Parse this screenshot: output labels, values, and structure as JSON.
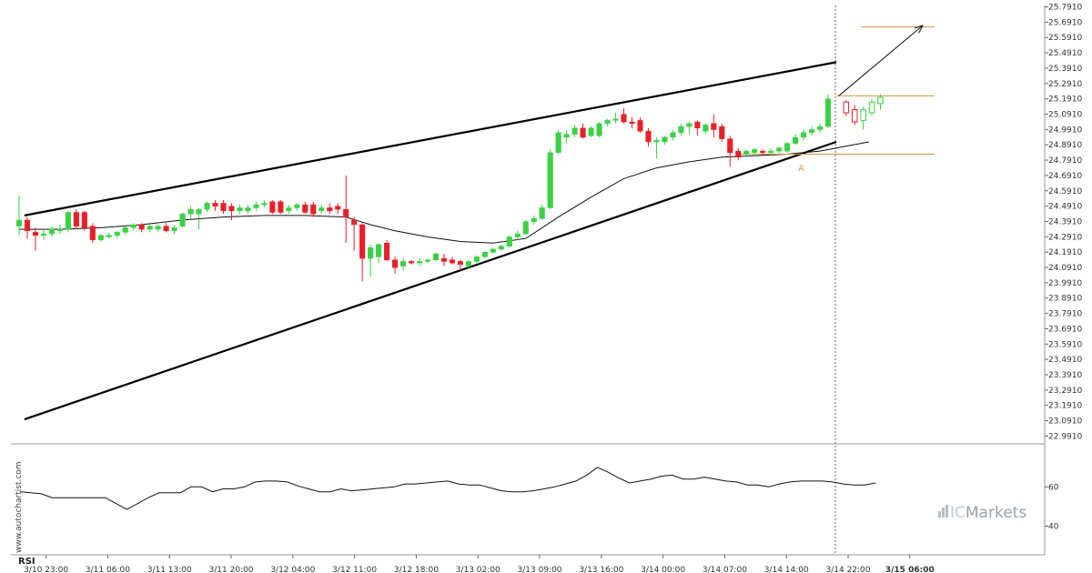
{
  "chart_data": {
    "type": "candlestick",
    "title": "",
    "price_axis": {
      "ticks": [
        "25.7910",
        "25.6910",
        "25.5910",
        "25.4910",
        "25.3910",
        "25.2910",
        "25.1910",
        "25.0910",
        "24.9910",
        "24.8910",
        "24.7910",
        "24.6910",
        "24.5910",
        "24.4910",
        "24.3910",
        "24.2910",
        "24.1910",
        "24.0910",
        "23.9910",
        "23.8910",
        "23.7910",
        "23.6910",
        "23.5910",
        "23.4910",
        "23.3910",
        "23.2910",
        "23.1910",
        "23.0910",
        "22.9910"
      ],
      "range": [
        22.94,
        25.8
      ]
    },
    "time_axis": {
      "labels": [
        "3/10 23:00",
        "3/11 06:00",
        "3/11 13:00",
        "3/11 20:00",
        "3/12 04:00",
        "3/12 11:00",
        "3/12 18:00",
        "3/13 02:00",
        "3/13 09:00",
        "3/13 16:00",
        "3/14 00:00",
        "3/14 07:00",
        "3/14 14:00",
        "3/14 22:00",
        "3/15 06:00"
      ],
      "bold_label_index": 14
    },
    "candles": [
      {
        "o": 24.36,
        "h": 24.56,
        "l": 24.3,
        "c": 24.4
      },
      {
        "o": 24.4,
        "h": 24.42,
        "l": 24.28,
        "c": 24.33
      },
      {
        "o": 24.32,
        "h": 24.35,
        "l": 24.2,
        "c": 24.3
      },
      {
        "o": 24.3,
        "h": 24.34,
        "l": 24.27,
        "c": 24.31
      },
      {
        "o": 24.31,
        "h": 24.36,
        "l": 24.29,
        "c": 24.34
      },
      {
        "o": 24.33,
        "h": 24.37,
        "l": 24.31,
        "c": 24.34
      },
      {
        "o": 24.34,
        "h": 24.46,
        "l": 24.32,
        "c": 24.45
      },
      {
        "o": 24.45,
        "h": 24.47,
        "l": 24.34,
        "c": 24.36
      },
      {
        "o": 24.45,
        "h": 24.46,
        "l": 24.33,
        "c": 24.35
      },
      {
        "o": 24.36,
        "h": 24.38,
        "l": 24.25,
        "c": 24.27
      },
      {
        "o": 24.27,
        "h": 24.31,
        "l": 24.26,
        "c": 24.3
      },
      {
        "o": 24.29,
        "h": 24.32,
        "l": 24.28,
        "c": 24.3
      },
      {
        "o": 24.3,
        "h": 24.33,
        "l": 24.28,
        "c": 24.32
      },
      {
        "o": 24.32,
        "h": 24.36,
        "l": 24.3,
        "c": 24.35
      },
      {
        "o": 24.35,
        "h": 24.38,
        "l": 24.33,
        "c": 24.37
      },
      {
        "o": 24.37,
        "h": 24.38,
        "l": 24.32,
        "c": 24.34
      },
      {
        "o": 24.34,
        "h": 24.37,
        "l": 24.32,
        "c": 24.36
      },
      {
        "o": 24.34,
        "h": 24.37,
        "l": 24.32,
        "c": 24.36
      },
      {
        "o": 24.36,
        "h": 24.38,
        "l": 24.32,
        "c": 24.33
      },
      {
        "o": 24.33,
        "h": 24.37,
        "l": 24.31,
        "c": 24.35
      },
      {
        "o": 24.36,
        "h": 24.45,
        "l": 24.35,
        "c": 24.44
      },
      {
        "o": 24.44,
        "h": 24.49,
        "l": 24.41,
        "c": 24.47
      },
      {
        "o": 24.44,
        "h": 24.48,
        "l": 24.34,
        "c": 24.47
      },
      {
        "o": 24.47,
        "h": 24.52,
        "l": 24.45,
        "c": 24.51
      },
      {
        "o": 24.51,
        "h": 24.53,
        "l": 24.46,
        "c": 24.49
      },
      {
        "o": 24.51,
        "h": 24.53,
        "l": 24.44,
        "c": 24.46
      },
      {
        "o": 24.49,
        "h": 24.51,
        "l": 24.4,
        "c": 24.46
      },
      {
        "o": 24.46,
        "h": 24.5,
        "l": 24.44,
        "c": 24.48
      },
      {
        "o": 24.46,
        "h": 24.5,
        "l": 24.44,
        "c": 24.48
      },
      {
        "o": 24.48,
        "h": 24.52,
        "l": 24.46,
        "c": 24.5
      },
      {
        "o": 24.5,
        "h": 24.53,
        "l": 24.48,
        "c": 24.51
      },
      {
        "o": 24.52,
        "h": 24.53,
        "l": 24.44,
        "c": 24.45
      },
      {
        "o": 24.52,
        "h": 24.53,
        "l": 24.44,
        "c": 24.45
      },
      {
        "o": 24.46,
        "h": 24.5,
        "l": 24.44,
        "c": 24.48
      },
      {
        "o": 24.48,
        "h": 24.51,
        "l": 24.46,
        "c": 24.5
      },
      {
        "o": 24.5,
        "h": 24.52,
        "l": 24.44,
        "c": 24.45
      },
      {
        "o": 24.5,
        "h": 24.52,
        "l": 24.42,
        "c": 24.44
      },
      {
        "o": 24.46,
        "h": 24.5,
        "l": 24.44,
        "c": 24.48
      },
      {
        "o": 24.48,
        "h": 24.51,
        "l": 24.44,
        "c": 24.46
      },
      {
        "o": 24.49,
        "h": 24.51,
        "l": 24.44,
        "c": 24.47
      },
      {
        "o": 24.47,
        "h": 24.69,
        "l": 24.25,
        "c": 24.42
      },
      {
        "o": 24.4,
        "h": 24.42,
        "l": 24.2,
        "c": 24.37
      },
      {
        "o": 24.37,
        "h": 24.38,
        "l": 24.0,
        "c": 24.15
      },
      {
        "o": 24.15,
        "h": 24.24,
        "l": 24.03,
        "c": 24.22
      },
      {
        "o": 24.16,
        "h": 24.25,
        "l": 24.12,
        "c": 24.24
      },
      {
        "o": 24.25,
        "h": 24.27,
        "l": 24.13,
        "c": 24.14
      },
      {
        "o": 24.14,
        "h": 24.16,
        "l": 24.05,
        "c": 24.09
      },
      {
        "o": 24.1,
        "h": 24.15,
        "l": 24.07,
        "c": 24.13
      },
      {
        "o": 24.13,
        "h": 24.14,
        "l": 24.11,
        "c": 24.12
      },
      {
        "o": 24.12,
        "h": 24.15,
        "l": 24.1,
        "c": 24.13
      },
      {
        "o": 24.13,
        "h": 24.15,
        "l": 24.12,
        "c": 24.14
      },
      {
        "o": 24.14,
        "h": 24.19,
        "l": 24.13,
        "c": 24.18
      },
      {
        "o": 24.15,
        "h": 24.18,
        "l": 24.1,
        "c": 24.13
      },
      {
        "o": 24.14,
        "h": 24.16,
        "l": 24.11,
        "c": 24.12
      },
      {
        "o": 24.13,
        "h": 24.14,
        "l": 24.07,
        "c": 24.11
      },
      {
        "o": 24.1,
        "h": 24.14,
        "l": 24.08,
        "c": 24.13
      },
      {
        "o": 24.13,
        "h": 24.17,
        "l": 24.12,
        "c": 24.16
      },
      {
        "o": 24.16,
        "h": 24.2,
        "l": 24.15,
        "c": 24.19
      },
      {
        "o": 24.19,
        "h": 24.22,
        "l": 24.18,
        "c": 24.21
      },
      {
        "o": 24.21,
        "h": 24.24,
        "l": 24.2,
        "c": 24.23
      },
      {
        "o": 24.23,
        "h": 24.3,
        "l": 24.22,
        "c": 24.29
      },
      {
        "o": 24.29,
        "h": 24.33,
        "l": 24.27,
        "c": 24.31
      },
      {
        "o": 24.31,
        "h": 24.4,
        "l": 24.3,
        "c": 24.39
      },
      {
        "o": 24.39,
        "h": 24.43,
        "l": 24.37,
        "c": 24.41
      },
      {
        "o": 24.41,
        "h": 24.5,
        "l": 24.4,
        "c": 24.48
      },
      {
        "o": 24.48,
        "h": 24.86,
        "l": 24.47,
        "c": 24.84
      },
      {
        "o": 24.84,
        "h": 24.99,
        "l": 24.83,
        "c": 24.97
      },
      {
        "o": 24.94,
        "h": 24.99,
        "l": 24.9,
        "c": 24.96
      },
      {
        "o": 24.96,
        "h": 25.02,
        "l": 24.94,
        "c": 25.0
      },
      {
        "o": 25.0,
        "h": 25.03,
        "l": 24.93,
        "c": 24.94
      },
      {
        "o": 24.95,
        "h": 25.01,
        "l": 24.94,
        "c": 25.0
      },
      {
        "o": 24.95,
        "h": 25.04,
        "l": 24.94,
        "c": 25.03
      },
      {
        "o": 25.03,
        "h": 25.06,
        "l": 25.01,
        "c": 25.05
      },
      {
        "o": 25.05,
        "h": 25.1,
        "l": 25.03,
        "c": 25.06
      },
      {
        "o": 25.09,
        "h": 25.13,
        "l": 25.03,
        "c": 25.04
      },
      {
        "o": 25.04,
        "h": 25.07,
        "l": 25.0,
        "c": 25.03
      },
      {
        "o": 25.05,
        "h": 25.07,
        "l": 24.97,
        "c": 24.98
      },
      {
        "o": 24.98,
        "h": 25.0,
        "l": 24.88,
        "c": 24.91
      },
      {
        "o": 24.91,
        "h": 24.94,
        "l": 24.8,
        "c": 24.92
      },
      {
        "o": 24.91,
        "h": 24.95,
        "l": 24.89,
        "c": 24.94
      },
      {
        "o": 24.94,
        "h": 24.99,
        "l": 24.92,
        "c": 24.97
      },
      {
        "o": 24.97,
        "h": 25.03,
        "l": 24.95,
        "c": 25.01
      },
      {
        "o": 25.01,
        "h": 25.04,
        "l": 24.96,
        "c": 25.03
      },
      {
        "o": 25.04,
        "h": 25.05,
        "l": 24.95,
        "c": 25.0
      },
      {
        "o": 24.98,
        "h": 25.03,
        "l": 24.96,
        "c": 25.02
      },
      {
        "o": 25.03,
        "h": 25.09,
        "l": 24.94,
        "c": 24.99
      },
      {
        "o": 25.01,
        "h": 25.03,
        "l": 24.91,
        "c": 24.93
      },
      {
        "o": 24.93,
        "h": 24.95,
        "l": 24.75,
        "c": 24.84
      },
      {
        "o": 24.85,
        "h": 24.87,
        "l": 24.79,
        "c": 24.81
      },
      {
        "o": 24.83,
        "h": 24.86,
        "l": 24.82,
        "c": 24.85
      },
      {
        "o": 24.84,
        "h": 24.87,
        "l": 24.82,
        "c": 24.86
      },
      {
        "o": 24.85,
        "h": 24.86,
        "l": 24.82,
        "c": 24.84
      },
      {
        "o": 24.84,
        "h": 24.87,
        "l": 24.82,
        "c": 24.85
      },
      {
        "o": 24.85,
        "h": 24.88,
        "l": 24.83,
        "c": 24.87
      },
      {
        "o": 24.85,
        "h": 24.91,
        "l": 24.84,
        "c": 24.9
      },
      {
        "o": 24.9,
        "h": 24.96,
        "l": 24.89,
        "c": 24.94
      },
      {
        "o": 24.94,
        "h": 24.99,
        "l": 24.92,
        "c": 24.97
      },
      {
        "o": 24.97,
        "h": 25.01,
        "l": 24.95,
        "c": 24.99
      },
      {
        "o": 24.99,
        "h": 25.03,
        "l": 24.97,
        "c": 25.01
      },
      {
        "o": 25.01,
        "h": 25.22,
        "l": 25.0,
        "c": 25.19
      }
    ],
    "projection_candles": [
      {
        "o": 25.17,
        "h": 25.18,
        "l": 25.08,
        "c": 25.1
      },
      {
        "o": 25.12,
        "h": 25.15,
        "l": 25.02,
        "c": 25.04
      },
      {
        "o": 25.05,
        "h": 25.14,
        "l": 24.99,
        "c": 25.12
      },
      {
        "o": 25.1,
        "h": 25.19,
        "l": 25.08,
        "c": 25.17
      },
      {
        "o": 25.16,
        "h": 25.22,
        "l": 25.12,
        "c": 25.2
      }
    ],
    "moving_average": [
      [
        0,
        24.34
      ],
      [
        5,
        24.34
      ],
      [
        10,
        24.35
      ],
      [
        15,
        24.37
      ],
      [
        20,
        24.4
      ],
      [
        25,
        24.42
      ],
      [
        30,
        24.43
      ],
      [
        35,
        24.43
      ],
      [
        40,
        24.42
      ],
      [
        43,
        24.37
      ],
      [
        46,
        24.33
      ],
      [
        50,
        24.29
      ],
      [
        54,
        24.26
      ],
      [
        58,
        24.25
      ],
      [
        62,
        24.28
      ],
      [
        66,
        24.42
      ],
      [
        70,
        24.55
      ],
      [
        74,
        24.67
      ],
      [
        78,
        24.74
      ],
      [
        82,
        24.78
      ],
      [
        86,
        24.81
      ],
      [
        90,
        24.82
      ],
      [
        94,
        24.83
      ],
      [
        98,
        24.85
      ],
      [
        100,
        24.87
      ],
      [
        104,
        24.91
      ]
    ],
    "channel": {
      "upper": [
        [
          0.65,
          24.43
        ],
        [
          100,
          25.43
        ]
      ],
      "lower": [
        [
          0.65,
          23.1
        ],
        [
          100,
          24.91
        ]
      ]
    },
    "levels": [
      {
        "name": "resistance",
        "price": 25.21,
        "from_index": 100,
        "to_index": 112,
        "color": "#d9923a"
      },
      {
        "name": "target",
        "price": 25.66,
        "from_index": 103,
        "to_index": 112,
        "color": "#d9923a"
      },
      {
        "name": "breakout",
        "price": 24.83,
        "from_index": 88,
        "to_index": 112,
        "color": "#d9923a"
      }
    ],
    "forecast_arrow": {
      "from": [
        100.3,
        25.21
      ],
      "to": [
        110.6,
        25.67
      ],
      "color": "#111111"
    },
    "marker": {
      "text": "A",
      "index": 95.7,
      "price": 24.78,
      "color": "#d9923a"
    },
    "rsi": {
      "title": "RSI",
      "range": [
        30,
        75
      ],
      "ticks": [
        "60",
        "40"
      ],
      "values": [
        57.5,
        57,
        56.5,
        54.5,
        54.5,
        54.5,
        54.5,
        54.5,
        54.5,
        51.5,
        48.5,
        51.5,
        54.5,
        57,
        57,
        57,
        60,
        60,
        57.5,
        59,
        59,
        60,
        62.5,
        63,
        63,
        62.5,
        60.5,
        59,
        57.5,
        57.5,
        59,
        58,
        58.5,
        59,
        59.5,
        60,
        61.5,
        61.5,
        62,
        62.5,
        63,
        61.5,
        61,
        61,
        59.5,
        58,
        57.5,
        57.5,
        58,
        59,
        60,
        61.5,
        63,
        66,
        70,
        67.5,
        64.5,
        62,
        63,
        64,
        65.5,
        66,
        64,
        64,
        65,
        64,
        63,
        62.5,
        61,
        61,
        60,
        61.5,
        62.5,
        63,
        63,
        63,
        62.5,
        61.5,
        61,
        61,
        62
      ]
    },
    "colors": {
      "up": "#3bd146",
      "down": "#e8202a",
      "axis": "#333333",
      "grid": "#cccccc",
      "current_time_line": "#666666"
    }
  },
  "watermark": {
    "site": "www.autochartist.com",
    "brand_prefix": "IC",
    "brand_suffix": "Markets"
  }
}
